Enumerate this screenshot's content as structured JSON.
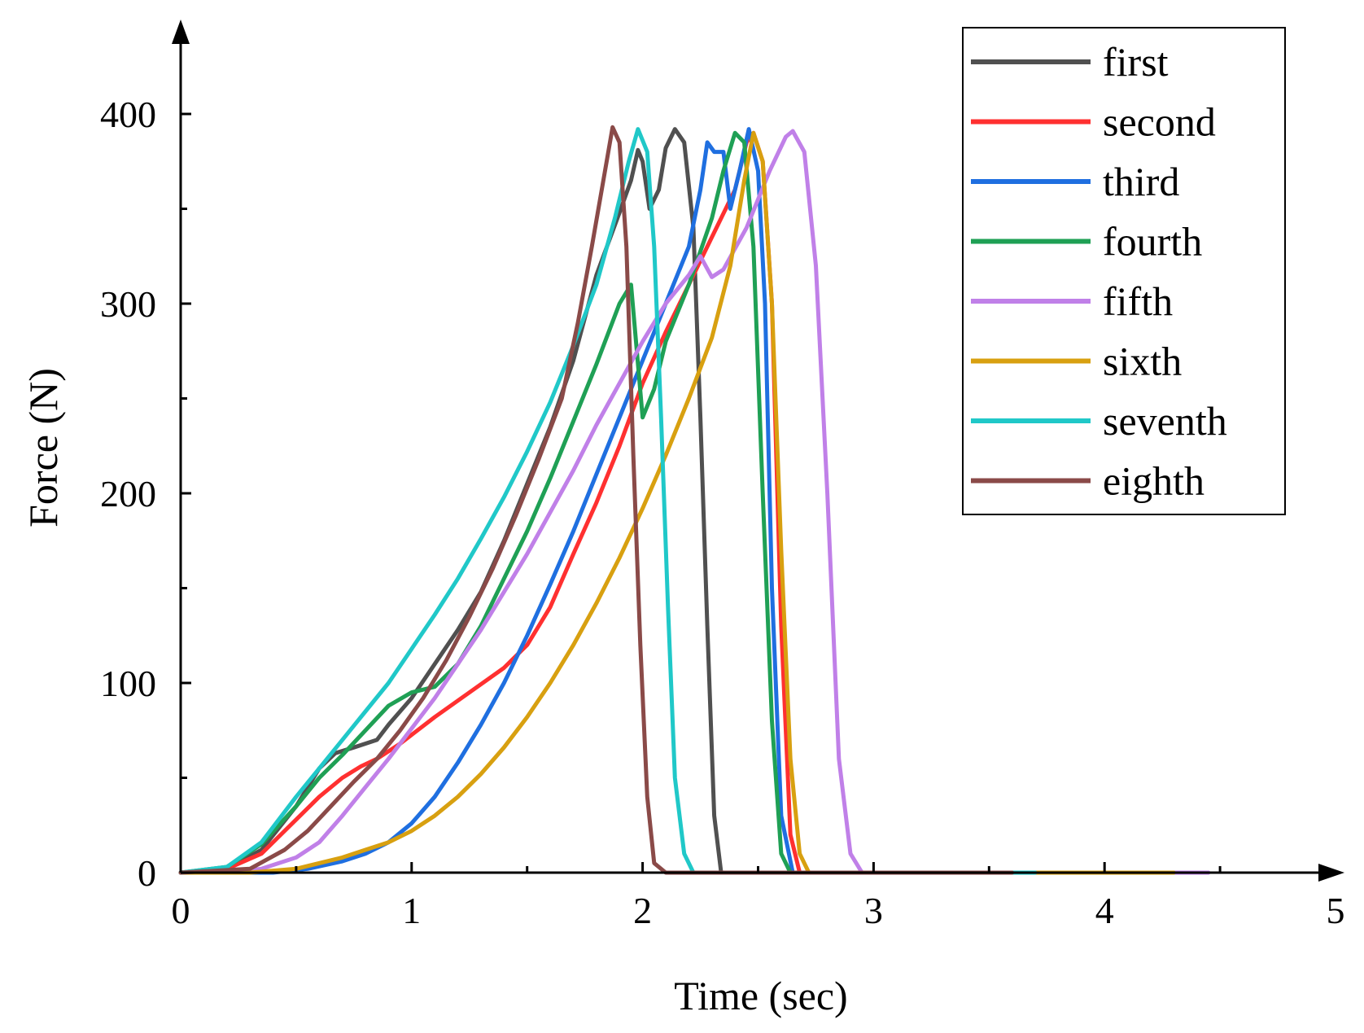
{
  "chart_data": {
    "type": "line",
    "title": "",
    "xlabel": "Time (sec)",
    "ylabel": "Force (N)",
    "xlim": [
      0,
      5
    ],
    "ylim": [
      0,
      440
    ],
    "xticks": [
      0,
      1,
      2,
      3,
      4,
      5
    ],
    "yticks": [
      0,
      100,
      200,
      300,
      400
    ],
    "x_minor_ticks": [
      0.5,
      1.5,
      2.5,
      3.5,
      4.5
    ],
    "y_minor_ticks": [
      50,
      150,
      250,
      350
    ],
    "legend_position": "top-right",
    "series": [
      {
        "name": "first",
        "color": "#505050",
        "points": [
          [
            0,
            0
          ],
          [
            0.2,
            2
          ],
          [
            0.35,
            12
          ],
          [
            0.5,
            35
          ],
          [
            0.6,
            55
          ],
          [
            0.67,
            63
          ],
          [
            0.75,
            66
          ],
          [
            0.85,
            70
          ],
          [
            0.9,
            78
          ],
          [
            1.0,
            92
          ],
          [
            1.1,
            110
          ],
          [
            1.2,
            128
          ],
          [
            1.3,
            148
          ],
          [
            1.4,
            175
          ],
          [
            1.5,
            205
          ],
          [
            1.6,
            235
          ],
          [
            1.7,
            270
          ],
          [
            1.8,
            315
          ],
          [
            1.9,
            348
          ],
          [
            1.95,
            365
          ],
          [
            1.98,
            381
          ],
          [
            2.0,
            375
          ],
          [
            2.03,
            350
          ],
          [
            2.07,
            360
          ],
          [
            2.1,
            382
          ],
          [
            2.14,
            392
          ],
          [
            2.18,
            385
          ],
          [
            2.22,
            340
          ],
          [
            2.25,
            240
          ],
          [
            2.28,
            130
          ],
          [
            2.31,
            30
          ],
          [
            2.34,
            0
          ],
          [
            3.0,
            0
          ]
        ]
      },
      {
        "name": "second",
        "color": "#ff3030",
        "points": [
          [
            0,
            0
          ],
          [
            0.2,
            2
          ],
          [
            0.35,
            10
          ],
          [
            0.5,
            28
          ],
          [
            0.6,
            40
          ],
          [
            0.7,
            50
          ],
          [
            0.78,
            56
          ],
          [
            0.85,
            60
          ],
          [
            0.95,
            68
          ],
          [
            1.1,
            82
          ],
          [
            1.25,
            95
          ],
          [
            1.4,
            108
          ],
          [
            1.5,
            120
          ],
          [
            1.6,
            140
          ],
          [
            1.7,
            168
          ],
          [
            1.8,
            195
          ],
          [
            1.9,
            225
          ],
          [
            2.0,
            258
          ],
          [
            2.1,
            285
          ],
          [
            2.2,
            310
          ],
          [
            2.3,
            335
          ],
          [
            2.4,
            360
          ],
          [
            2.45,
            385
          ],
          [
            2.48,
            390
          ],
          [
            2.52,
            375
          ],
          [
            2.56,
            300
          ],
          [
            2.6,
            130
          ],
          [
            2.64,
            20
          ],
          [
            2.68,
            0
          ],
          [
            3.0,
            0
          ]
        ]
      },
      {
        "name": "third",
        "color": "#1f6fe0",
        "points": [
          [
            0,
            0
          ],
          [
            0.4,
            0
          ],
          [
            0.55,
            2
          ],
          [
            0.7,
            6
          ],
          [
            0.8,
            10
          ],
          [
            0.9,
            16
          ],
          [
            1.0,
            26
          ],
          [
            1.1,
            40
          ],
          [
            1.2,
            58
          ],
          [
            1.3,
            78
          ],
          [
            1.4,
            100
          ],
          [
            1.5,
            125
          ],
          [
            1.6,
            152
          ],
          [
            1.7,
            180
          ],
          [
            1.8,
            210
          ],
          [
            1.9,
            240
          ],
          [
            2.0,
            270
          ],
          [
            2.1,
            300
          ],
          [
            2.2,
            330
          ],
          [
            2.25,
            360
          ],
          [
            2.28,
            385
          ],
          [
            2.31,
            380
          ],
          [
            2.35,
            380
          ],
          [
            2.38,
            350
          ],
          [
            2.42,
            370
          ],
          [
            2.46,
            392
          ],
          [
            2.5,
            370
          ],
          [
            2.53,
            300
          ],
          [
            2.56,
            150
          ],
          [
            2.6,
            30
          ],
          [
            2.65,
            0
          ],
          [
            3.0,
            0
          ]
        ]
      },
      {
        "name": "fourth",
        "color": "#1fa055",
        "points": [
          [
            0,
            0
          ],
          [
            0.2,
            3
          ],
          [
            0.35,
            15
          ],
          [
            0.5,
            35
          ],
          [
            0.6,
            50
          ],
          [
            0.7,
            62
          ],
          [
            0.8,
            75
          ],
          [
            0.9,
            88
          ],
          [
            1.0,
            95
          ],
          [
            1.1,
            98
          ],
          [
            1.2,
            110
          ],
          [
            1.3,
            130
          ],
          [
            1.4,
            155
          ],
          [
            1.5,
            180
          ],
          [
            1.6,
            208
          ],
          [
            1.7,
            238
          ],
          [
            1.8,
            268
          ],
          [
            1.9,
            300
          ],
          [
            1.95,
            310
          ],
          [
            2.0,
            240
          ],
          [
            2.05,
            255
          ],
          [
            2.1,
            280
          ],
          [
            2.2,
            310
          ],
          [
            2.3,
            345
          ],
          [
            2.35,
            370
          ],
          [
            2.4,
            390
          ],
          [
            2.44,
            385
          ],
          [
            2.48,
            330
          ],
          [
            2.52,
            200
          ],
          [
            2.56,
            80
          ],
          [
            2.6,
            10
          ],
          [
            2.64,
            0
          ],
          [
            3.0,
            0
          ]
        ]
      },
      {
        "name": "fifth",
        "color": "#c080e8",
        "points": [
          [
            0,
            0
          ],
          [
            0.2,
            0
          ],
          [
            0.35,
            2
          ],
          [
            0.5,
            8
          ],
          [
            0.6,
            16
          ],
          [
            0.7,
            30
          ],
          [
            0.8,
            45
          ],
          [
            0.9,
            60
          ],
          [
            1.0,
            76
          ],
          [
            1.1,
            92
          ],
          [
            1.2,
            110
          ],
          [
            1.3,
            128
          ],
          [
            1.4,
            148
          ],
          [
            1.5,
            168
          ],
          [
            1.6,
            190
          ],
          [
            1.7,
            212
          ],
          [
            1.8,
            236
          ],
          [
            1.9,
            258
          ],
          [
            2.0,
            280
          ],
          [
            2.1,
            300
          ],
          [
            2.2,
            315
          ],
          [
            2.25,
            325
          ],
          [
            2.3,
            314
          ],
          [
            2.35,
            318
          ],
          [
            2.45,
            340
          ],
          [
            2.55,
            370
          ],
          [
            2.62,
            388
          ],
          [
            2.65,
            391
          ],
          [
            2.7,
            380
          ],
          [
            2.75,
            320
          ],
          [
            2.8,
            200
          ],
          [
            2.85,
            60
          ],
          [
            2.9,
            10
          ],
          [
            2.95,
            0
          ],
          [
            4.45,
            0
          ]
        ]
      },
      {
        "name": "sixth",
        "color": "#d8a010",
        "points": [
          [
            0,
            0
          ],
          [
            0.3,
            0
          ],
          [
            0.5,
            2
          ],
          [
            0.7,
            8
          ],
          [
            0.8,
            12
          ],
          [
            0.9,
            16
          ],
          [
            1.0,
            22
          ],
          [
            1.1,
            30
          ],
          [
            1.2,
            40
          ],
          [
            1.3,
            52
          ],
          [
            1.4,
            66
          ],
          [
            1.5,
            82
          ],
          [
            1.6,
            100
          ],
          [
            1.7,
            120
          ],
          [
            1.8,
            142
          ],
          [
            1.9,
            166
          ],
          [
            2.0,
            192
          ],
          [
            2.1,
            220
          ],
          [
            2.2,
            250
          ],
          [
            2.3,
            282
          ],
          [
            2.38,
            320
          ],
          [
            2.44,
            365
          ],
          [
            2.48,
            390
          ],
          [
            2.52,
            375
          ],
          [
            2.56,
            300
          ],
          [
            2.6,
            170
          ],
          [
            2.64,
            60
          ],
          [
            2.68,
            10
          ],
          [
            2.72,
            0
          ],
          [
            4.3,
            0
          ]
        ]
      },
      {
        "name": "seventh",
        "color": "#20c8c8",
        "points": [
          [
            0,
            0
          ],
          [
            0.2,
            3
          ],
          [
            0.35,
            16
          ],
          [
            0.5,
            40
          ],
          [
            0.6,
            55
          ],
          [
            0.7,
            70
          ],
          [
            0.8,
            85
          ],
          [
            0.9,
            100
          ],
          [
            1.0,
            118
          ],
          [
            1.1,
            136
          ],
          [
            1.2,
            155
          ],
          [
            1.3,
            176
          ],
          [
            1.4,
            198
          ],
          [
            1.5,
            222
          ],
          [
            1.6,
            248
          ],
          [
            1.7,
            278
          ],
          [
            1.8,
            310
          ],
          [
            1.88,
            345
          ],
          [
            1.94,
            375
          ],
          [
            1.98,
            392
          ],
          [
            2.02,
            380
          ],
          [
            2.05,
            330
          ],
          [
            2.08,
            240
          ],
          [
            2.11,
            140
          ],
          [
            2.14,
            50
          ],
          [
            2.18,
            10
          ],
          [
            2.22,
            0
          ],
          [
            3.7,
            0
          ]
        ]
      },
      {
        "name": "eighth",
        "color": "#8a4a48",
        "points": [
          [
            0,
            0
          ],
          [
            0.3,
            2
          ],
          [
            0.45,
            12
          ],
          [
            0.55,
            22
          ],
          [
            0.65,
            35
          ],
          [
            0.75,
            48
          ],
          [
            0.85,
            60
          ],
          [
            0.95,
            75
          ],
          [
            1.05,
            92
          ],
          [
            1.15,
            112
          ],
          [
            1.25,
            135
          ],
          [
            1.35,
            160
          ],
          [
            1.45,
            188
          ],
          [
            1.55,
            218
          ],
          [
            1.65,
            250
          ],
          [
            1.72,
            290
          ],
          [
            1.78,
            330
          ],
          [
            1.83,
            365
          ],
          [
            1.87,
            393
          ],
          [
            1.9,
            385
          ],
          [
            1.93,
            330
          ],
          [
            1.96,
            220
          ],
          [
            1.99,
            120
          ],
          [
            2.02,
            40
          ],
          [
            2.05,
            5
          ],
          [
            2.1,
            0
          ],
          [
            3.6,
            0
          ]
        ]
      }
    ]
  }
}
